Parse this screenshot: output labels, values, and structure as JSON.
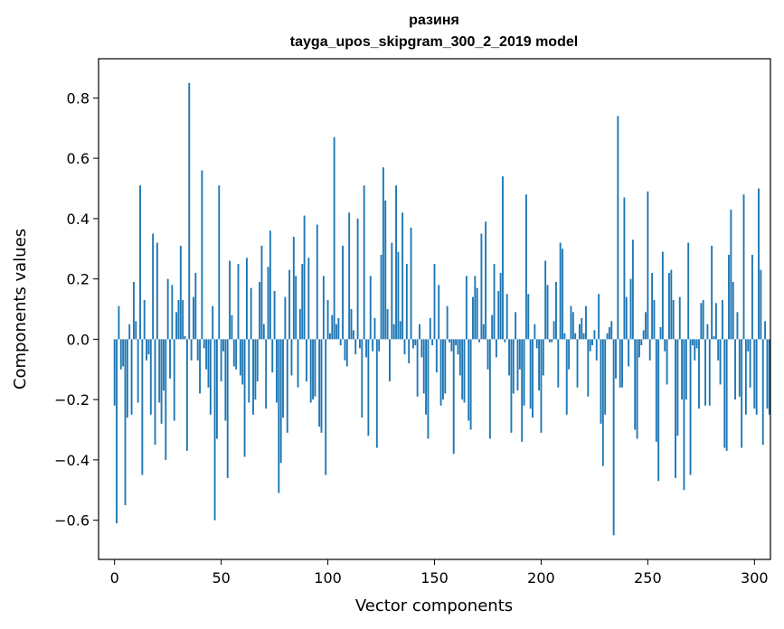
{
  "chart_data": {
    "type": "bar",
    "title": "разиня",
    "subtitle": "tayga_upos_skipgram_300_2_2019 model",
    "xlabel": "Vector components",
    "ylabel": "Components values",
    "xlim": [
      -7.5,
      307.5
    ],
    "ylim": [
      -0.73,
      0.93
    ],
    "x_ticks": [
      0,
      50,
      100,
      150,
      200,
      250,
      300
    ],
    "y_ticks": [
      -0.6,
      -0.4,
      -0.2,
      0.0,
      0.2,
      0.4,
      0.6,
      0.8
    ],
    "y_tick_labels": [
      "−0.6",
      "−0.4",
      "−0.2",
      "0.0",
      "0.2",
      "0.4",
      "0.6",
      "0.8"
    ],
    "bar_color": "#1f77b4",
    "grid": false,
    "values": [
      -0.22,
      -0.61,
      0.11,
      -0.1,
      -0.09,
      -0.55,
      -0.26,
      0.05,
      -0.25,
      0.19,
      0.06,
      -0.21,
      0.51,
      -0.45,
      0.13,
      -0.07,
      -0.05,
      -0.25,
      0.35,
      -0.35,
      0.32,
      -0.21,
      -0.28,
      -0.17,
      -0.4,
      0.2,
      -0.13,
      0.18,
      -0.27,
      0.09,
      0.13,
      0.31,
      0.13,
      0.01,
      -0.37,
      0.85,
      -0.07,
      0.14,
      0.22,
      -0.07,
      -0.18,
      0.56,
      -0.03,
      -0.1,
      -0.16,
      -0.25,
      0.11,
      -0.6,
      -0.33,
      0.51,
      -0.14,
      -0.04,
      -0.27,
      -0.46,
      0.26,
      0.08,
      -0.09,
      -0.1,
      0.25,
      -0.12,
      -0.15,
      -0.39,
      0.27,
      -0.21,
      0.17,
      -0.25,
      -0.2,
      -0.14,
      0.19,
      0.31,
      0.05,
      -0.23,
      0.24,
      0.36,
      -0.11,
      0.16,
      -0.21,
      -0.51,
      -0.41,
      -0.26,
      0.14,
      -0.31,
      0.23,
      -0.12,
      0.34,
      0.21,
      -0.16,
      0.1,
      0.25,
      0.41,
      -0.14,
      0.27,
      -0.21,
      -0.2,
      -0.19,
      0.38,
      -0.29,
      -0.31,
      0.21,
      -0.45,
      0.13,
      0.02,
      0.08,
      0.67,
      0.05,
      0.07,
      -0.02,
      0.31,
      -0.07,
      -0.09,
      0.42,
      0.1,
      0.03,
      -0.05,
      0.4,
      -0.03,
      -0.26,
      0.51,
      -0.06,
      -0.32,
      0.21,
      -0.04,
      0.07,
      -0.36,
      -0.04,
      0.28,
      0.57,
      0.46,
      0.1,
      -0.14,
      0.32,
      0.05,
      0.51,
      0.29,
      0.06,
      0.42,
      -0.05,
      0.25,
      -0.08,
      0.37,
      -0.03,
      -0.02,
      -0.19,
      0.05,
      -0.06,
      -0.18,
      -0.25,
      -0.33,
      0.07,
      -0.02,
      0.25,
      -0.11,
      0.18,
      -0.22,
      -0.2,
      -0.18,
      0.11,
      -0.01,
      -0.04,
      -0.38,
      -0.02,
      -0.05,
      -0.12,
      -0.2,
      -0.21,
      0.21,
      -0.27,
      -0.3,
      0.14,
      0.21,
      0.17,
      -0.01,
      0.35,
      0.05,
      0.39,
      -0.1,
      -0.33,
      0.08,
      0.25,
      -0.06,
      0.16,
      0.22,
      0.54,
      -0.01,
      0.15,
      -0.12,
      -0.31,
      -0.18,
      0.09,
      -0.17,
      -0.1,
      -0.34,
      -0.22,
      0.48,
      0.15,
      -0.23,
      -0.26,
      0.05,
      -0.03,
      -0.17,
      -0.31,
      -0.12,
      0.26,
      0.18,
      -0.01,
      -0.01,
      0.06,
      0.19,
      -0.16,
      0.32,
      0.3,
      0.02,
      -0.25,
      -0.1,
      0.11,
      0.09,
      0.02,
      -0.16,
      0.05,
      0.07,
      0.02,
      0.11,
      -0.19,
      -0.04,
      -0.02,
      0.03,
      -0.07,
      0.15,
      -0.28,
      -0.42,
      -0.25,
      0.02,
      0.04,
      0.06,
      -0.65,
      -0.13,
      0.74,
      -0.16,
      -0.16,
      0.47,
      0.14,
      -0.09,
      0.2,
      0.33,
      -0.3,
      -0.33,
      -0.06,
      -0.02,
      0.03,
      0.09,
      0.49,
      -0.07,
      0.22,
      0.13,
      -0.34,
      -0.47,
      0.04,
      0.29,
      -0.04,
      -0.15,
      0.22,
      0.23,
      0.13,
      -0.46,
      -0.32,
      0.14,
      -0.2,
      -0.5,
      -0.2,
      0.32,
      -0.45,
      -0.02,
      -0.07,
      -0.03,
      -0.23,
      0.12,
      0.13,
      -0.22,
      0.05,
      -0.22,
      0.31,
      0.01,
      0.12,
      -0.07,
      -0.15,
      0.13,
      -0.36,
      -0.37,
      0.28,
      0.43,
      0.19,
      -0.2,
      0.09,
      -0.19,
      -0.36,
      0.48,
      -0.25,
      -0.04,
      -0.16,
      0.28,
      -0.23,
      -0.25,
      0.5,
      0.23,
      -0.35,
      0.06,
      -0.23,
      -0.25
    ]
  }
}
